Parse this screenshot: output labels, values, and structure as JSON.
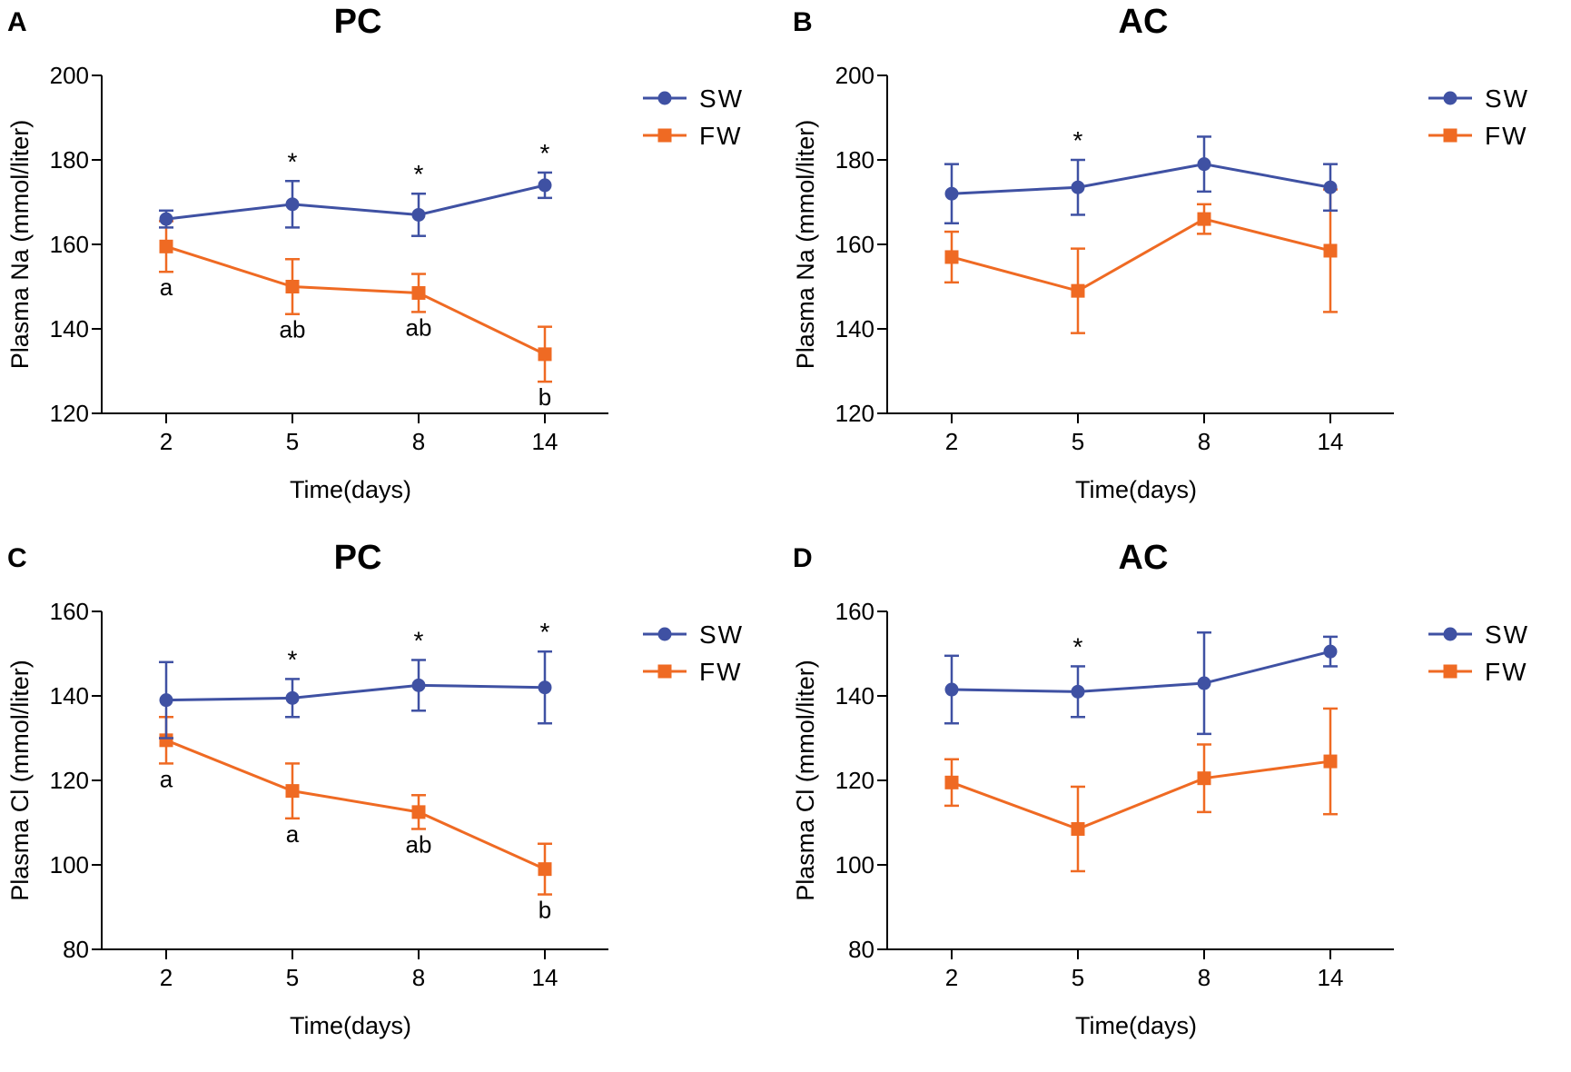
{
  "colors": {
    "SW": "#3f51a3",
    "FW": "#ef6a23",
    "axis": "#000000"
  },
  "chart_data": [
    {
      "letter": "A",
      "type": "line",
      "title": "PC",
      "xlabel": "Time(days)",
      "ylabel": "Plasma Na (mmol/liter)",
      "categories": [
        "2",
        "5",
        "8",
        "14"
      ],
      "ylim": [
        120,
        200
      ],
      "yticks": [
        "120",
        "140",
        "160",
        "180",
        "200"
      ],
      "series": [
        {
          "name": "SW",
          "marker": "circle",
          "values": [
            166,
            169.5,
            167,
            174
          ],
          "errors": [
            2,
            5.5,
            5,
            3
          ]
        },
        {
          "name": "FW",
          "marker": "square",
          "values": [
            159.5,
            150,
            148.5,
            134
          ],
          "errors": [
            6,
            6.5,
            4.5,
            6.5
          ]
        }
      ],
      "annotations": {
        "stars": [
          "",
          "*",
          "*",
          "*"
        ],
        "letters": [
          "a",
          "ab",
          "ab",
          "b"
        ]
      }
    },
    {
      "letter": "B",
      "type": "line",
      "title": "AC",
      "xlabel": "Time(days)",
      "ylabel": "Plasma Na (mmol/liter)",
      "categories": [
        "2",
        "5",
        "8",
        "14"
      ],
      "ylim": [
        120,
        200
      ],
      "yticks": [
        "120",
        "140",
        "160",
        "180",
        "200"
      ],
      "series": [
        {
          "name": "SW",
          "marker": "circle",
          "values": [
            172,
            173.5,
            179,
            173.5
          ],
          "errors": [
            7,
            6.5,
            6.5,
            5.5
          ]
        },
        {
          "name": "FW",
          "marker": "square",
          "values": [
            157,
            149,
            166,
            158.5
          ],
          "errors": [
            6,
            10,
            3.5,
            14.5
          ]
        }
      ],
      "annotations": {
        "stars": [
          "",
          "*",
          "",
          ""
        ],
        "letters": [
          "",
          "",
          "",
          ""
        ]
      }
    },
    {
      "letter": "C",
      "type": "line",
      "title": "PC",
      "xlabel": "Time(days)",
      "ylabel": "Plasma Cl (mmol/liter)",
      "categories": [
        "2",
        "5",
        "8",
        "14"
      ],
      "ylim": [
        80,
        160
      ],
      "yticks": [
        "80",
        "100",
        "120",
        "140",
        "160"
      ],
      "series": [
        {
          "name": "SW",
          "marker": "circle",
          "values": [
            139,
            139.5,
            142.5,
            142
          ],
          "errors": [
            9,
            4.5,
            6,
            8.5
          ]
        },
        {
          "name": "FW",
          "marker": "square",
          "values": [
            129.5,
            117.5,
            112.5,
            99
          ],
          "errors": [
            5.5,
            6.5,
            4,
            6
          ]
        }
      ],
      "annotations": {
        "stars": [
          "",
          "*",
          "*",
          "*"
        ],
        "letters": [
          "a",
          "a",
          "ab",
          "b"
        ]
      }
    },
    {
      "letter": "D",
      "type": "line",
      "title": "AC",
      "xlabel": "Time(days)",
      "ylabel": "Plasma Cl (mmol/liter)",
      "categories": [
        "2",
        "5",
        "8",
        "14"
      ],
      "ylim": [
        80,
        160
      ],
      "yticks": [
        "80",
        "100",
        "120",
        "140",
        "160"
      ],
      "series": [
        {
          "name": "SW",
          "marker": "circle",
          "values": [
            141.5,
            141,
            143,
            150.5
          ],
          "errors": [
            8,
            6,
            12,
            3.5
          ]
        },
        {
          "name": "FW",
          "marker": "square",
          "values": [
            119.5,
            108.5,
            120.5,
            124.5
          ],
          "errors": [
            5.5,
            10,
            8,
            12.5
          ]
        }
      ],
      "annotations": {
        "stars": [
          "",
          "*",
          "",
          ""
        ],
        "letters": [
          "",
          "",
          "",
          ""
        ]
      }
    }
  ]
}
